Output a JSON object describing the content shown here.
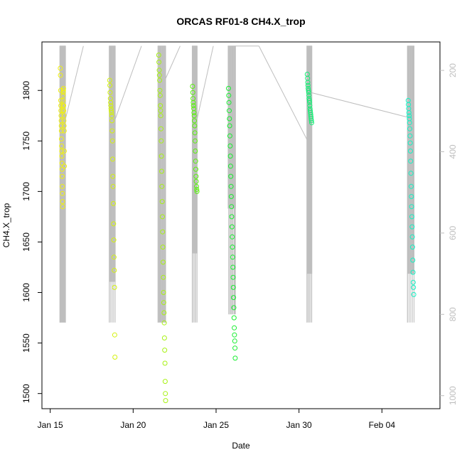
{
  "chart_data": {
    "type": "scatter",
    "title": "ORCAS RF01-8 CH4.X_trop",
    "xlabel": "Date",
    "ylabel": "CH4.X_trop",
    "xlim": [
      "2016-01-14T12:00",
      "2016-02-07T12:00"
    ],
    "ylim": [
      1485,
      1848
    ],
    "x_ticks": [
      {
        "label": "Jan 15",
        "date": "2016-01-15"
      },
      {
        "label": "Jan 20",
        "date": "2016-01-20"
      },
      {
        "label": "Jan 25",
        "date": "2016-01-25"
      },
      {
        "label": "Jan 30",
        "date": "2016-01-30"
      },
      {
        "label": "Feb 04",
        "date": "2016-02-04"
      }
    ],
    "y_ticks": [
      1500,
      1550,
      1600,
      1650,
      1700,
      1750,
      1800
    ],
    "secondary_axis": {
      "side": "right",
      "color": "#bebebe",
      "reversed": true,
      "ylim": [
        1032,
        130
      ],
      "ticks": [
        200,
        400,
        600,
        800,
        1000
      ]
    },
    "grid": false,
    "legend": "none",
    "colors": {
      "RF01": "#f2f20d",
      "RF02": "#d4f20d",
      "RF03": "#a8f214",
      "RF04": "#5af20d",
      "RF05": "#18ee30",
      "RF06": "#14ee75",
      "RF07": "#14f2c4",
      "pressure_trace": "#bebebe"
    },
    "series": [
      {
        "flight": "RF01",
        "x": [
          "2016-01-15T14:30",
          "2016-01-15T14:45",
          "2016-01-15T15:00",
          "2016-01-15T15:10",
          "2016-01-15T15:20",
          "2016-01-15T15:30",
          "2016-01-15T15:40",
          "2016-01-15T15:50",
          "2016-01-15T16:00",
          "2016-01-15T16:10",
          "2016-01-15T16:20",
          "2016-01-15T16:30",
          "2016-01-15T16:40",
          "2016-01-15T16:50",
          "2016-01-15T17:00",
          "2016-01-15T17:10",
          "2016-01-15T17:20",
          "2016-01-15T17:30",
          "2016-01-15T17:40",
          "2016-01-15T17:50",
          "2016-01-15T18:00",
          "2016-01-15T18:10",
          "2016-01-15T18:20",
          "2016-01-15T18:30",
          "2016-01-15T18:40",
          "2016-01-15T18:50",
          "2016-01-15T19:00",
          "2016-01-15T19:10",
          "2016-01-15T19:20",
          "2016-01-15T19:30",
          "2016-01-15T19:40",
          "2016-01-15T19:50",
          "2016-01-15T20:00",
          "2016-01-15T20:10",
          "2016-01-15T20:20",
          "2016-01-15T20:30"
        ],
        "y": [
          1822,
          1815,
          1800,
          1790,
          1785,
          1780,
          1775,
          1770,
          1765,
          1760,
          1752,
          1745,
          1740,
          1735,
          1728,
          1722,
          1715,
          1705,
          1698,
          1690,
          1685,
          1780,
          1785,
          1790,
          1795,
          1798,
          1800,
          1802,
          1785,
          1780,
          1775,
          1770,
          1765,
          1760,
          1740,
          1725
        ]
      },
      {
        "flight": "RF02",
        "x": [
          "2016-01-18T14:00",
          "2016-01-18T14:20",
          "2016-01-18T14:40",
          "2016-01-18T15:00",
          "2016-01-18T15:20",
          "2016-01-18T15:40",
          "2016-01-18T16:00",
          "2016-01-18T16:20",
          "2016-01-18T16:40",
          "2016-01-18T17:00",
          "2016-01-18T17:20",
          "2016-01-18T17:40",
          "2016-01-18T18:00",
          "2016-01-18T18:20",
          "2016-01-18T18:40",
          "2016-01-18T19:00",
          "2016-01-18T19:20",
          "2016-01-18T19:40",
          "2016-01-18T20:00",
          "2016-01-18T20:20",
          "2016-01-18T20:40",
          "2016-01-18T21:00",
          "2016-01-18T21:20",
          "2016-01-18T21:40"
        ],
        "y": [
          1810,
          1805,
          1798,
          1792,
          1788,
          1785,
          1782,
          1780,
          1778,
          1775,
          1770,
          1760,
          1750,
          1732,
          1715,
          1705,
          1688,
          1668,
          1652,
          1635,
          1622,
          1605,
          1558,
          1536
        ]
      },
      {
        "flight": "RF03",
        "x": [
          "2016-01-21T13:00",
          "2016-01-21T13:20",
          "2016-01-21T13:40",
          "2016-01-21T14:00",
          "2016-01-21T14:20",
          "2016-01-21T14:40",
          "2016-01-21T15:00",
          "2016-01-21T15:20",
          "2016-01-21T15:40",
          "2016-01-21T16:00",
          "2016-01-21T16:20",
          "2016-01-21T16:40",
          "2016-01-21T17:00",
          "2016-01-21T17:20",
          "2016-01-21T17:40",
          "2016-01-21T18:00",
          "2016-01-21T18:20",
          "2016-01-21T18:40",
          "2016-01-21T19:00",
          "2016-01-21T19:20",
          "2016-01-21T19:40",
          "2016-01-21T20:00",
          "2016-01-21T20:20",
          "2016-01-21T20:40",
          "2016-01-21T21:00",
          "2016-01-21T21:20",
          "2016-01-21T21:40",
          "2016-01-21T22:00",
          "2016-01-21T22:20",
          "2016-01-21T22:40",
          "2016-01-21T23:00"
        ],
        "y": [
          1835,
          1828,
          1820,
          1815,
          1810,
          1800,
          1795,
          1785,
          1780,
          1775,
          1762,
          1750,
          1735,
          1720,
          1705,
          1690,
          1675,
          1660,
          1645,
          1630,
          1615,
          1600,
          1590,
          1580,
          1570,
          1555,
          1543,
          1530,
          1512,
          1500,
          1493
        ]
      },
      {
        "flight": "RF04",
        "x": [
          "2016-01-23T14:00",
          "2016-01-23T14:20",
          "2016-01-23T14:40",
          "2016-01-23T15:00",
          "2016-01-23T15:20",
          "2016-01-23T15:40",
          "2016-01-23T16:00",
          "2016-01-23T16:20",
          "2016-01-23T16:40",
          "2016-01-23T17:00",
          "2016-01-23T17:20",
          "2016-01-23T17:40",
          "2016-01-23T18:00",
          "2016-01-23T18:20",
          "2016-01-23T18:40",
          "2016-01-23T19:00",
          "2016-01-23T19:20",
          "2016-01-23T19:40",
          "2016-01-23T20:00",
          "2016-01-23T20:20"
        ],
        "y": [
          1804,
          1798,
          1792,
          1788,
          1785,
          1782,
          1778,
          1775,
          1770,
          1765,
          1758,
          1750,
          1740,
          1730,
          1722,
          1715,
          1710,
          1705,
          1702,
          1700
        ]
      },
      {
        "flight": "RF05",
        "x": [
          "2016-01-25T18:00",
          "2016-01-25T18:20",
          "2016-01-25T18:40",
          "2016-01-25T19:00",
          "2016-01-25T19:20",
          "2016-01-25T19:40",
          "2016-01-25T20:00",
          "2016-01-25T20:20",
          "2016-01-25T20:40",
          "2016-01-25T21:00",
          "2016-01-25T21:20",
          "2016-01-25T21:40",
          "2016-01-25T22:00",
          "2016-01-25T22:20",
          "2016-01-25T22:40",
          "2016-01-25T23:00",
          "2016-01-25T23:20",
          "2016-01-25T23:40",
          "2016-01-26T00:00",
          "2016-01-26T00:20",
          "2016-01-26T00:40",
          "2016-01-26T01:00",
          "2016-01-26T01:20",
          "2016-01-26T01:40",
          "2016-01-26T02:00",
          "2016-01-26T02:20",
          "2016-01-26T02:40",
          "2016-01-26T03:00",
          "2016-01-26T03:20",
          "2016-01-26T03:40"
        ],
        "y": [
          1802,
          1795,
          1788,
          1780,
          1772,
          1765,
          1755,
          1745,
          1735,
          1725,
          1715,
          1705,
          1695,
          1685,
          1675,
          1665,
          1655,
          1645,
          1635,
          1625,
          1615,
          1605,
          1595,
          1585,
          1575,
          1565,
          1558,
          1552,
          1545,
          1535
        ]
      },
      {
        "flight": "RF06",
        "x": [
          "2016-01-30T12:00",
          "2016-01-30T12:20",
          "2016-01-30T12:40",
          "2016-01-30T13:00",
          "2016-01-30T13:20",
          "2016-01-30T13:40",
          "2016-01-30T14:00",
          "2016-01-30T14:20",
          "2016-01-30T14:40",
          "2016-01-30T15:00",
          "2016-01-30T15:20",
          "2016-01-30T15:40",
          "2016-01-30T16:00",
          "2016-01-30T16:20",
          "2016-01-30T16:40",
          "2016-01-30T17:00",
          "2016-01-30T17:20",
          "2016-01-30T17:40",
          "2016-01-30T18:00",
          "2016-01-30T18:20"
        ],
        "y": [
          1816,
          1812,
          1808,
          1805,
          1802,
          1800,
          1798,
          1795,
          1792,
          1790,
          1788,
          1785,
          1782,
          1780,
          1778,
          1776,
          1774,
          1772,
          1770,
          1768
        ]
      },
      {
        "flight": "RF07",
        "x": [
          "2016-02-05T14:00",
          "2016-02-05T14:20",
          "2016-02-05T14:40",
          "2016-02-05T15:00",
          "2016-02-05T15:20",
          "2016-02-05T15:40",
          "2016-02-05T16:00",
          "2016-02-05T16:20",
          "2016-02-05T16:40",
          "2016-02-05T17:00",
          "2016-02-05T17:20",
          "2016-02-05T17:40",
          "2016-02-05T18:00",
          "2016-02-05T18:20",
          "2016-02-05T18:40",
          "2016-02-05T19:00",
          "2016-02-05T19:20",
          "2016-02-05T19:40",
          "2016-02-05T20:00",
          "2016-02-05T20:20",
          "2016-02-05T20:40",
          "2016-02-05T21:00",
          "2016-02-05T21:20",
          "2016-02-05T21:40",
          "2016-02-05T22:00"
        ],
        "y": [
          1790,
          1786,
          1782,
          1778,
          1775,
          1772,
          1768,
          1762,
          1755,
          1748,
          1740,
          1730,
          1718,
          1705,
          1695,
          1685,
          1675,
          1665,
          1655,
          1645,
          1632,
          1620,
          1610,
          1605,
          1598
        ]
      }
    ],
    "pressure_trace": [
      {
        "flight": "RF01",
        "x": [
          "2016-01-15T14:00",
          "2016-01-15T14:00",
          "2016-01-15T22:00",
          "2016-01-15T22:00"
        ],
        "p": [
          820,
          140,
          140,
          820
        ]
      },
      {
        "flight": "RF02",
        "x": [
          "2016-01-18T13:30",
          "2016-01-18T13:30",
          "2016-01-18T22:00",
          "2016-01-18T22:00"
        ],
        "p": [
          820,
          140,
          140,
          720
        ]
      },
      {
        "flight": "RF03",
        "x": [
          "2016-01-21T12:00",
          "2016-01-21T12:00",
          "2016-01-21T23:00",
          "2016-01-21T23:00"
        ],
        "p": [
          820,
          140,
          140,
          820
        ]
      },
      {
        "flight": "RF04",
        "x": [
          "2016-01-23T13:30",
          "2016-01-23T13:30",
          "2016-01-23T20:30",
          "2016-01-23T20:30"
        ],
        "p": [
          820,
          140,
          140,
          650
        ]
      },
      {
        "flight": "RF05",
        "x": [
          "2016-01-25T17:30",
          "2016-01-25T17:30",
          "2016-01-26T04:00",
          "2016-01-26T04:00"
        ],
        "p": [
          540,
          140,
          140,
          800
        ]
      },
      {
        "flight": "RF06",
        "x": [
          "2016-01-30T11:30",
          "2016-01-30T11:30",
          "2016-01-30T18:30",
          "2016-01-30T18:30"
        ],
        "p": [
          820,
          140,
          140,
          700
        ]
      },
      {
        "flight": "RF07",
        "x": [
          "2016-02-05T13:00",
          "2016-02-05T13:00",
          "2016-02-05T22:30",
          "2016-02-05T22:30"
        ],
        "p": [
          820,
          140,
          140,
          700
        ]
      }
    ],
    "transit_lines": [
      {
        "x": [
          "2016-01-15T22:00",
          "2016-01-17T00:00"
        ],
        "p": [
          320,
          140
        ]
      },
      {
        "x": [
          "2016-01-18T22:00",
          "2016-01-20T12:00"
        ],
        "p": [
          320,
          140
        ]
      },
      {
        "x": [
          "2016-01-21T23:00",
          "2016-01-22T20:00"
        ],
        "p": [
          220,
          140
        ]
      },
      {
        "x": [
          "2016-01-23T20:30",
          "2016-01-24T20:00"
        ],
        "p": [
          320,
          140
        ]
      },
      {
        "x": [
          "2016-01-26T04:00",
          "2016-01-27T14:00"
        ],
        "p": [
          140,
          140
        ]
      },
      {
        "x": [
          "2016-01-27T14:00",
          "2016-01-30T11:30"
        ],
        "p": [
          140,
          370
        ]
      },
      {
        "x": [
          "2016-01-30T18:30",
          "2016-02-05T13:00"
        ],
        "p": [
          255,
          315
        ]
      }
    ]
  }
}
